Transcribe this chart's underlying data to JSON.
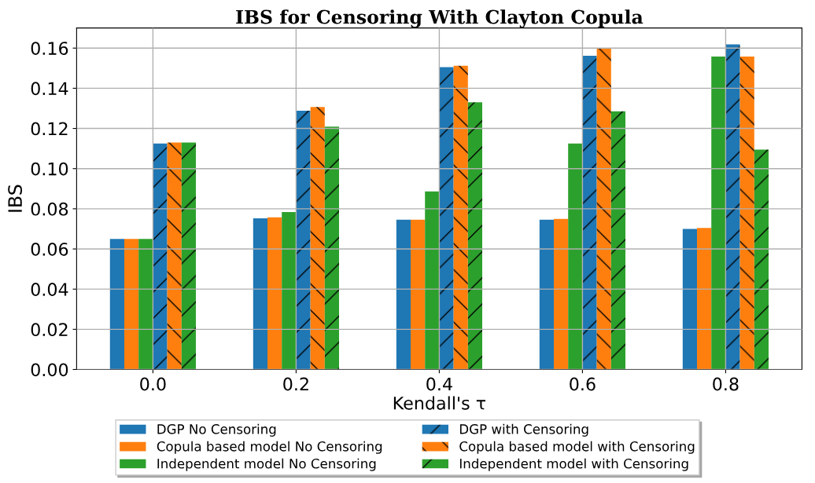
{
  "chart_data": {
    "type": "bar",
    "title": "IBS for Censoring With Clayton Copula",
    "xlabel": "Kendall's τ",
    "ylabel": "IBS",
    "categories": [
      "0.0",
      "0.2",
      "0.4",
      "0.6",
      "0.8"
    ],
    "series": [
      {
        "name": "DGP No Censoring",
        "color": "#1f77b4",
        "values": [
          0.065,
          0.0753,
          0.0746,
          0.0746,
          0.07
        ]
      },
      {
        "name": "Copula based model No Censoring",
        "color": "#ff7f0e",
        "values": [
          0.065,
          0.0757,
          0.0746,
          0.075,
          0.0705
        ]
      },
      {
        "name": "Independent model No Censoring",
        "color": "#2ca02c",
        "values": [
          0.065,
          0.0784,
          0.0886,
          0.1125,
          0.1558
        ]
      },
      {
        "name": "DGP with Censoring",
        "color": "#1f77b4",
        "values": [
          0.1125,
          0.1288,
          0.1505,
          0.1562,
          0.1619
        ]
      },
      {
        "name": "Copula based model with Censoring",
        "color": "#ff7f0e",
        "values": [
          0.113,
          0.1307,
          0.1512,
          0.16,
          0.1558
        ]
      },
      {
        "name": "Independent model with Censoring",
        "color": "#2ca02c",
        "values": [
          0.113,
          0.1209,
          0.133,
          0.1285,
          0.1095
        ]
      }
    ],
    "ylim": [
      0,
      0.17
    ],
    "yticks": [
      {
        "value": 0,
        "label": "0.00"
      },
      {
        "value": 0.02,
        "label": "0.02"
      },
      {
        "value": 0.04,
        "label": "0.04"
      },
      {
        "value": 0.06,
        "label": "0.06"
      },
      {
        "value": 0.08,
        "label": "0.08"
      },
      {
        "value": 0.1,
        "label": "0.10"
      },
      {
        "value": 0.12,
        "label": "0.12"
      },
      {
        "value": 0.14,
        "label": "0.14"
      },
      {
        "value": 0.16,
        "label": "0.16"
      }
    ],
    "grid": true,
    "legend": "bottom"
  }
}
